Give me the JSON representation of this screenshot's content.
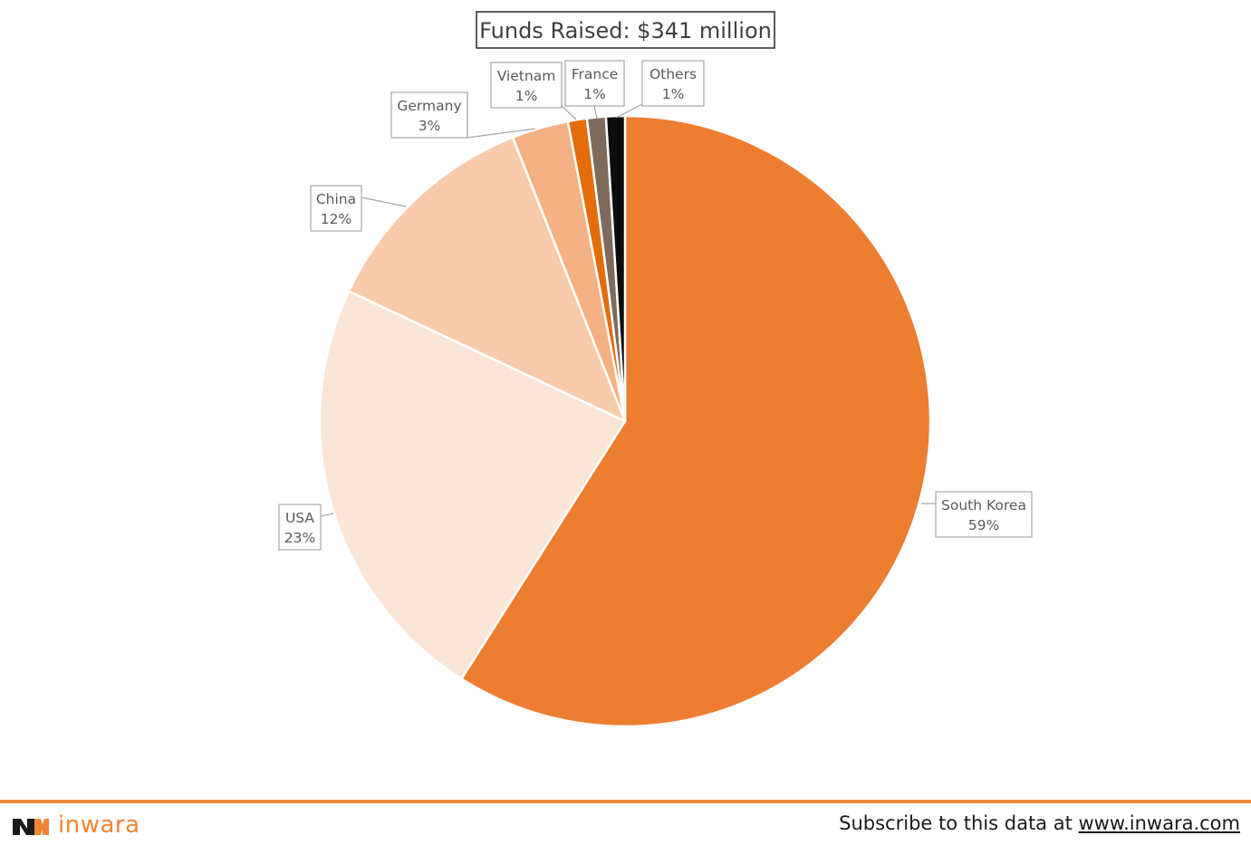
{
  "chart_data": {
    "type": "pie",
    "title": "Funds Raised: $341 million",
    "slices": [
      {
        "label": "South Korea",
        "value": 59,
        "value_label": "59%",
        "color": "#ED7D31"
      },
      {
        "label": "USA",
        "value": 23,
        "value_label": "23%",
        "color": "#FBE5D6"
      },
      {
        "label": "China",
        "value": 12,
        "value_label": "12%",
        "color": "#F8CBAD"
      },
      {
        "label": "Germany",
        "value": 3,
        "value_label": "3%",
        "color": "#F4B183"
      },
      {
        "label": "Vietnam",
        "value": 1,
        "value_label": "1%",
        "color": "#E46C0A"
      },
      {
        "label": "France",
        "value": 1,
        "value_label": "1%",
        "color": "#7F6A5E"
      },
      {
        "label": "Others",
        "value": 1,
        "value_label": "1%",
        "color": "#0D0D0D"
      }
    ],
    "start_angle": "12 o'clock",
    "direction": "clockwise",
    "legend": "none",
    "data_labels": "callouts"
  },
  "footer": {
    "brand_name": "inwara",
    "subscribe_text": "Subscribe to this data at ",
    "subscribe_link": "www.inwara.com",
    "accent_color": "#F08A3F"
  }
}
